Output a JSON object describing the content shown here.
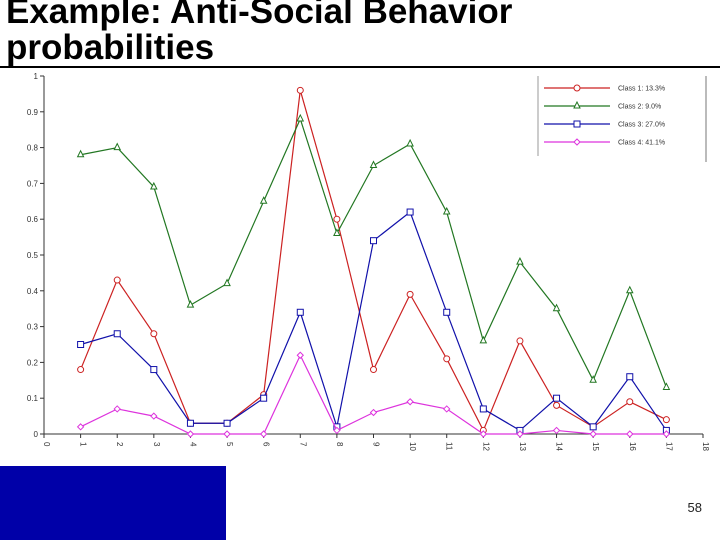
{
  "slide": {
    "title": "Example: Anti-Social Behavior probabilities",
    "page_number": "58"
  },
  "chart_data": {
    "type": "line",
    "title": "",
    "xlabel": "",
    "ylabel": "",
    "x": [
      1,
      2,
      3,
      4,
      5,
      6,
      7,
      8,
      9,
      10,
      11,
      12,
      13,
      14,
      15,
      16,
      17
    ],
    "xlim": [
      0,
      18
    ],
    "ylim": [
      0,
      1
    ],
    "y_ticks": [
      "0",
      "0.1",
      "0.2",
      "0.3",
      "0.4",
      "0.5",
      "0.6",
      "0.7",
      "0.8",
      "0.9",
      "1"
    ],
    "x_ticks": [
      "0",
      "1",
      "2",
      "3",
      "4",
      "5",
      "6",
      "7",
      "8",
      "9",
      "10",
      "11",
      "12",
      "13",
      "14",
      "15",
      "16",
      "17",
      "18"
    ],
    "grid": false,
    "legend_placement": "top-right",
    "series": [
      {
        "name": "Class 1: 13.3%",
        "color": "#cc2222",
        "marker": "circle",
        "values": [
          0.18,
          0.43,
          0.28,
          0.03,
          0.03,
          0.11,
          0.96,
          0.6,
          0.18,
          0.39,
          0.21,
          0.01,
          0.26,
          0.08,
          0.02,
          0.09,
          0.04
        ]
      },
      {
        "name": "Class 2: 9.0%",
        "color": "#227722",
        "marker": "triangle",
        "values": [
          0.78,
          0.8,
          0.69,
          0.36,
          0.42,
          0.65,
          0.88,
          0.56,
          0.75,
          0.81,
          0.62,
          0.26,
          0.48,
          0.35,
          0.15,
          0.4,
          0.13
        ]
      },
      {
        "name": "Class 3: 27.0%",
        "color": "#1111aa",
        "marker": "square",
        "values": [
          0.25,
          0.28,
          0.18,
          0.03,
          0.03,
          0.1,
          0.34,
          0.02,
          0.54,
          0.62,
          0.34,
          0.07,
          0.01,
          0.1,
          0.02,
          0.16,
          0.01
        ]
      },
      {
        "name": "Class 4: 41.1%",
        "color": "#dd33dd",
        "marker": "diamond",
        "values": [
          0.02,
          0.07,
          0.05,
          0.0,
          0.0,
          0.0,
          0.22,
          0.01,
          0.06,
          0.09,
          0.07,
          0.0,
          0.0,
          0.01,
          0.0,
          0.0,
          0.0
        ]
      }
    ]
  }
}
